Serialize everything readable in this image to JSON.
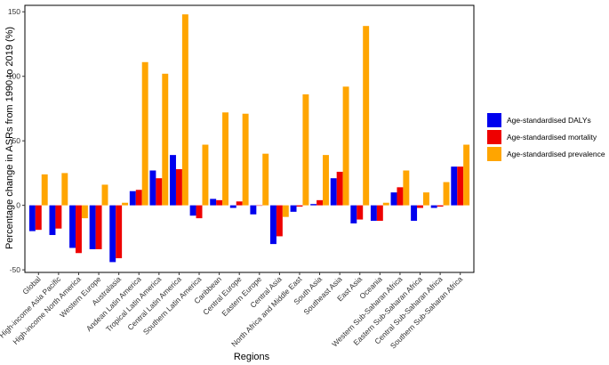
{
  "chart_data": {
    "type": "bar",
    "title": "",
    "xlabel": "Regions",
    "ylabel": "Percentage change in ASRs from 1990 to 2019 (%)",
    "ylim": [
      -52,
      155
    ],
    "yticks": [
      -50,
      0,
      50,
      100,
      150
    ],
    "grid": false,
    "legend_position": "right",
    "categories": [
      "Global",
      "High-income Asia Pacific",
      "High-income North America",
      "Western Europe",
      "Australasia",
      "Andean Latin America",
      "Tropical Latin America",
      "Central Latin America",
      "Southern Latin America",
      "Caribbean",
      "Central Europe",
      "Eastern Europe",
      "Central Asia",
      "North Africa and Middle East",
      "South Asia",
      "Southeast Asia",
      "East Asia",
      "Oceania",
      "Western Sub-Saharan Africa",
      "Eastern Sub-Saharan Africa",
      "Central Sub-Saharan Africa",
      "Southern Sub-Saharan Africa"
    ],
    "series": [
      {
        "name": "Age-standardised DALYs",
        "color": "#0000ee",
        "values": [
          -20,
          -23,
          -33,
          -34,
          -44,
          11,
          27,
          39,
          -8,
          5,
          -2,
          -7,
          -30,
          -5,
          1,
          21,
          -14,
          -12,
          10,
          -12,
          -2,
          30
        ]
      },
      {
        "name": "Age-standardised mortality",
        "color": "#ee0000",
        "values": [
          -19,
          -18,
          -37,
          -34,
          -41,
          12,
          21,
          28,
          -10,
          4,
          3,
          0,
          -24,
          -1,
          4,
          26,
          -11,
          -12,
          14,
          -2,
          -1,
          30
        ]
      },
      {
        "name": "Age-standardised prevalence",
        "color": "#ffa500",
        "values": [
          24,
          25,
          -10,
          16,
          2,
          111,
          102,
          148,
          47,
          72,
          71,
          40,
          -9,
          86,
          39,
          92,
          139,
          2,
          27,
          10,
          18,
          47
        ]
      }
    ]
  }
}
